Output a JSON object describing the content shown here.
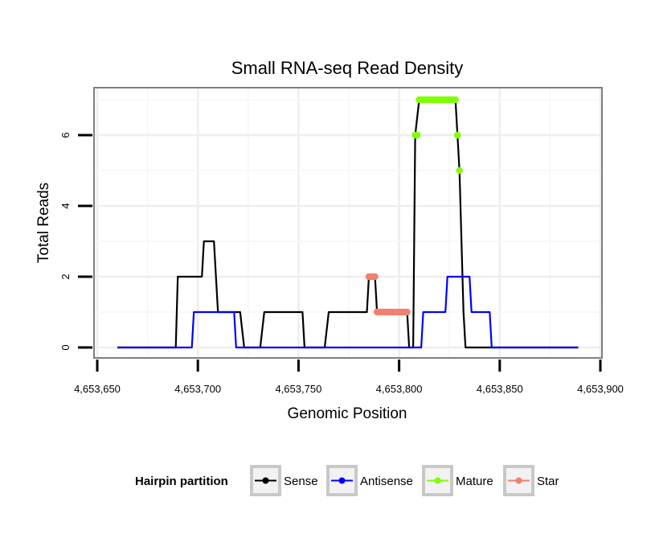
{
  "chart_data": {
    "type": "line",
    "title": "Small RNA-seq Read Density",
    "xlabel": "Genomic Position",
    "ylabel": "Total Reads",
    "xlim": [
      4653650,
      4653900
    ],
    "ylim": [
      -0.3,
      7.3
    ],
    "x_ticks": [
      4653650,
      4653700,
      4653750,
      4653800,
      4653850,
      4653900
    ],
    "x_tick_labels": [
      "4,653,650",
      "4,653,700",
      "4,653,750",
      "4,653,800",
      "4,653,850",
      "4,653,900"
    ],
    "y_ticks": [
      0,
      2,
      4,
      6
    ],
    "y_tick_labels": [
      "0",
      "2",
      "4",
      "6"
    ],
    "grid": true,
    "legend": {
      "title": "Hairpin partition",
      "position": "bottom",
      "entries": [
        {
          "label": "Sense",
          "color": "#000000"
        },
        {
          "label": "Antisense",
          "color": "#0000ff"
        },
        {
          "label": "Mature",
          "color": "#7fff00"
        },
        {
          "label": "Star",
          "color": "#f08070"
        }
      ]
    },
    "series": [
      {
        "name": "Sense",
        "color": "#000000",
        "style": "line",
        "points": [
          [
            4653660,
            0
          ],
          [
            4653689,
            0
          ],
          [
            4653690,
            2
          ],
          [
            4653702,
            2
          ],
          [
            4653703,
            3
          ],
          [
            4653708,
            3
          ],
          [
            4653710,
            1
          ],
          [
            4653721,
            1
          ],
          [
            4653723,
            0
          ],
          [
            4653731,
            0
          ],
          [
            4653733,
            1
          ],
          [
            4653752,
            1
          ],
          [
            4653753,
            0
          ],
          [
            4653763,
            0
          ],
          [
            4653765,
            1
          ],
          [
            4653784,
            1
          ],
          [
            4653785,
            2
          ],
          [
            4653788,
            2
          ],
          [
            4653789,
            1
          ],
          [
            4653804,
            1
          ],
          [
            4653805,
            0
          ],
          [
            4653807,
            0
          ],
          [
            4653808,
            6
          ],
          [
            4653810,
            7
          ],
          [
            4653828,
            7
          ],
          [
            4653829,
            6
          ],
          [
            4653830,
            5
          ],
          [
            4653832,
            1
          ],
          [
            4653833,
            0
          ],
          [
            4653889,
            0
          ]
        ]
      },
      {
        "name": "Antisense",
        "color": "#0000ff",
        "style": "line",
        "points": [
          [
            4653660,
            0
          ],
          [
            4653697,
            0
          ],
          [
            4653698,
            1
          ],
          [
            4653718,
            1
          ],
          [
            4653719,
            0
          ],
          [
            4653807,
            0
          ],
          [
            4653808,
            0
          ],
          [
            4653811,
            0
          ],
          [
            4653812,
            1
          ],
          [
            4653823,
            1
          ],
          [
            4653824,
            2
          ],
          [
            4653835,
            2
          ],
          [
            4653836,
            1
          ],
          [
            4653845,
            1
          ],
          [
            4653846,
            0
          ],
          [
            4653889,
            0
          ]
        ]
      },
      {
        "name": "Mature",
        "color": "#7fff00",
        "style": "points",
        "points": [
          [
            4653808,
            6
          ],
          [
            4653809,
            6
          ],
          [
            4653810,
            7
          ],
          [
            4653811,
            7
          ],
          [
            4653812,
            7
          ],
          [
            4653813,
            7
          ],
          [
            4653814,
            7
          ],
          [
            4653815,
            7
          ],
          [
            4653816,
            7
          ],
          [
            4653817,
            7
          ],
          [
            4653818,
            7
          ],
          [
            4653819,
            7
          ],
          [
            4653820,
            7
          ],
          [
            4653821,
            7
          ],
          [
            4653822,
            7
          ],
          [
            4653823,
            7
          ],
          [
            4653824,
            7
          ],
          [
            4653825,
            7
          ],
          [
            4653826,
            7
          ],
          [
            4653827,
            7
          ],
          [
            4653828,
            7
          ],
          [
            4653829,
            6
          ],
          [
            4653830,
            5
          ]
        ]
      },
      {
        "name": "Star",
        "color": "#f08070",
        "style": "points",
        "points": [
          [
            4653785,
            2
          ],
          [
            4653786,
            2
          ],
          [
            4653787,
            2
          ],
          [
            4653788,
            2
          ],
          [
            4653789,
            1
          ],
          [
            4653790,
            1
          ],
          [
            4653791,
            1
          ],
          [
            4653792,
            1
          ],
          [
            4653793,
            1
          ],
          [
            4653794,
            1
          ],
          [
            4653795,
            1
          ],
          [
            4653796,
            1
          ],
          [
            4653797,
            1
          ],
          [
            4653798,
            1
          ],
          [
            4653799,
            1
          ],
          [
            4653800,
            1
          ],
          [
            4653801,
            1
          ],
          [
            4653802,
            1
          ],
          [
            4653803,
            1
          ],
          [
            4653804,
            1
          ]
        ]
      }
    ]
  }
}
